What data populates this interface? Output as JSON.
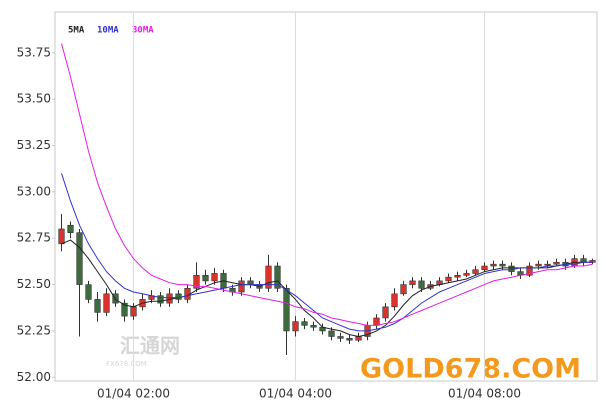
{
  "chart_data": {
    "type": "candlestick",
    "open": [
      52.72,
      52.82,
      52.78,
      52.5,
      52.42,
      52.35,
      52.45,
      52.4,
      52.33,
      52.38,
      52.42,
      52.44,
      52.4,
      52.45,
      52.42,
      52.48,
      52.55,
      52.52,
      52.56,
      52.48,
      52.46,
      52.52,
      52.5,
      52.48,
      52.6,
      52.48,
      52.25,
      52.3,
      52.28,
      52.27,
      52.25,
      52.22,
      52.21,
      52.2,
      52.22,
      52.28,
      52.32,
      52.38,
      52.45,
      52.5,
      52.52,
      52.48,
      52.5,
      52.52,
      52.54,
      52.55,
      52.56,
      52.58,
      52.6,
      52.61,
      52.6,
      52.57,
      52.55,
      52.6,
      52.61,
      52.61,
      52.62,
      52.6,
      52.64,
      52.62
    ],
    "high": [
      52.88,
      52.84,
      52.8,
      52.52,
      52.46,
      52.48,
      52.47,
      52.42,
      52.4,
      52.45,
      52.47,
      52.46,
      52.48,
      52.47,
      52.5,
      52.62,
      52.58,
      52.59,
      52.58,
      52.5,
      52.54,
      52.54,
      52.52,
      52.66,
      52.62,
      52.5,
      52.33,
      52.32,
      52.3,
      52.29,
      52.27,
      52.24,
      52.23,
      52.24,
      52.3,
      52.34,
      52.4,
      52.48,
      52.52,
      52.54,
      52.54,
      52.52,
      52.54,
      52.56,
      52.57,
      52.58,
      52.6,
      52.62,
      52.63,
      52.63,
      52.62,
      52.59,
      52.62,
      52.63,
      52.63,
      52.64,
      52.64,
      52.66,
      52.66,
      52.64
    ],
    "low": [
      52.68,
      52.75,
      52.22,
      52.4,
      52.3,
      52.33,
      52.38,
      52.3,
      52.31,
      52.36,
      52.4,
      52.38,
      52.38,
      52.4,
      52.4,
      52.46,
      52.5,
      52.5,
      52.46,
      52.44,
      52.44,
      52.48,
      52.46,
      52.46,
      52.46,
      52.12,
      52.22,
      52.26,
      52.25,
      52.23,
      52.2,
      52.19,
      52.18,
      52.19,
      52.2,
      52.26,
      52.3,
      52.36,
      52.44,
      52.48,
      52.46,
      52.47,
      52.49,
      52.51,
      52.52,
      52.54,
      52.55,
      52.57,
      52.58,
      52.58,
      52.55,
      52.53,
      52.54,
      52.58,
      52.59,
      52.6,
      52.58,
      52.59,
      52.6,
      52.61
    ],
    "close": [
      52.8,
      52.78,
      52.5,
      52.42,
      52.35,
      52.45,
      52.4,
      52.33,
      52.38,
      52.42,
      52.44,
      52.4,
      52.45,
      52.42,
      52.48,
      52.55,
      52.52,
      52.56,
      52.48,
      52.46,
      52.52,
      52.5,
      52.48,
      52.6,
      52.48,
      52.25,
      52.3,
      52.28,
      52.27,
      52.25,
      52.22,
      52.21,
      52.2,
      52.22,
      52.28,
      52.32,
      52.38,
      52.45,
      52.5,
      52.52,
      52.48,
      52.5,
      52.52,
      52.54,
      52.55,
      52.56,
      52.58,
      52.6,
      52.61,
      52.6,
      52.57,
      52.55,
      52.6,
      52.61,
      52.61,
      52.62,
      52.6,
      52.64,
      52.62,
      52.63
    ],
    "up_color": "#d9342b",
    "down_color": "#3d6b3d",
    "series": [
      {
        "name": "5MA",
        "color": "#222222",
        "values": [
          52.72,
          52.74,
          52.7,
          52.64,
          52.57,
          52.5,
          52.42,
          52.39,
          52.38,
          52.4,
          52.41,
          52.41,
          52.42,
          52.43,
          52.44,
          52.47,
          52.49,
          52.51,
          52.52,
          52.51,
          52.5,
          52.5,
          52.49,
          52.51,
          52.52,
          52.47,
          52.42,
          52.36,
          52.32,
          52.27,
          52.26,
          52.25,
          52.23,
          52.22,
          52.23,
          52.25,
          52.28,
          52.33,
          52.39,
          52.44,
          52.47,
          52.49,
          52.5,
          52.51,
          52.52,
          52.53,
          52.55,
          52.57,
          52.58,
          52.59,
          52.59,
          52.59,
          52.59,
          52.59,
          52.59,
          52.6,
          52.61,
          52.62,
          52.62,
          52.62
        ]
      },
      {
        "name": "10MA",
        "color": "#3333cc",
        "values": [
          53.1,
          52.95,
          52.82,
          52.72,
          52.64,
          52.57,
          52.52,
          52.48,
          52.46,
          52.45,
          52.44,
          52.43,
          52.43,
          52.43,
          52.44,
          52.45,
          52.46,
          52.47,
          52.48,
          52.49,
          52.5,
          52.5,
          52.5,
          52.5,
          52.5,
          52.47,
          52.44,
          52.4,
          52.36,
          52.32,
          52.3,
          52.28,
          52.26,
          52.25,
          52.25,
          52.26,
          52.27,
          52.29,
          52.32,
          52.36,
          52.4,
          52.43,
          52.46,
          52.48,
          52.5,
          52.52,
          52.54,
          52.56,
          52.57,
          52.58,
          52.58,
          52.59,
          52.59,
          52.59,
          52.6,
          52.6,
          52.61,
          52.61,
          52.62,
          52.62
        ]
      },
      {
        "name": "30MA",
        "color": "#e020e0",
        "values": [
          53.8,
          53.62,
          53.42,
          53.22,
          53.05,
          52.92,
          52.8,
          52.71,
          52.64,
          52.59,
          52.55,
          52.53,
          52.51,
          52.5,
          52.5,
          52.49,
          52.49,
          52.48,
          52.47,
          52.46,
          52.45,
          52.44,
          52.43,
          52.42,
          52.41,
          52.4,
          52.38,
          52.37,
          52.35,
          52.34,
          52.32,
          52.31,
          52.3,
          52.29,
          52.28,
          52.28,
          52.29,
          52.3,
          52.32,
          52.34,
          52.36,
          52.38,
          52.4,
          52.42,
          52.44,
          52.46,
          52.48,
          52.5,
          52.52,
          52.53,
          52.54,
          52.55,
          52.56,
          52.57,
          52.58,
          52.58,
          52.59,
          52.6,
          52.6,
          52.61
        ]
      }
    ],
    "ylim": [
      51.98,
      53.97
    ],
    "yticks": [
      {
        "value": 52,
        "label": "52.00"
      },
      {
        "value": 52.25,
        "label": "52.25"
      },
      {
        "value": 52.5,
        "label": "52.50"
      },
      {
        "value": 52.75,
        "label": "52.75"
      },
      {
        "value": 53,
        "label": "53.00"
      },
      {
        "value": 53.25,
        "label": "53.25"
      },
      {
        "value": 53.5,
        "label": "53.50"
      },
      {
        "value": 53.75,
        "label": "53.75"
      }
    ],
    "xticks": [
      {
        "value": 8,
        "label": "01/04 02:00"
      },
      {
        "value": 26,
        "label": "01/04 04:00"
      },
      {
        "value": 47,
        "label": "01/04 08:00"
      }
    ],
    "grid": "x",
    "watermarks": [
      "汇通网",
      "FX678.COM",
      "GOLD678.COM"
    ]
  }
}
